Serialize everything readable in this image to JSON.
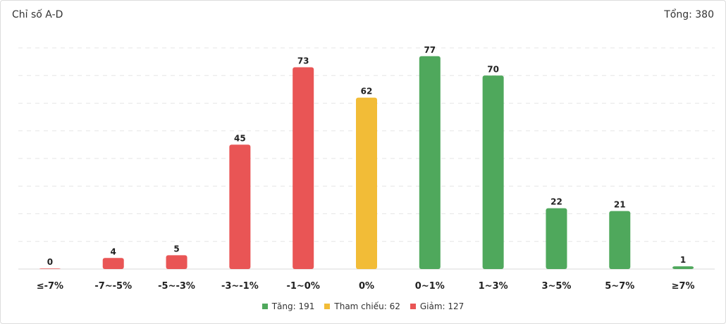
{
  "header": {
    "title": "Chỉ số A-D",
    "total": "Tổng: 380"
  },
  "colors": {
    "up": "#4fa85c",
    "ref": "#f2bc37",
    "down": "#e95555"
  },
  "legend": [
    {
      "label": "Tăng: 191",
      "color": "#4fa85c"
    },
    {
      "label": "Tham chiếu: 62",
      "color": "#f2bc37"
    },
    {
      "label": "Giảm: 127",
      "color": "#e95555"
    }
  ],
  "chart_data": {
    "type": "bar",
    "title": "Chỉ số A-D",
    "categories": [
      "≤-7%",
      "-7~-5%",
      "-5~-3%",
      "-3~-1%",
      "-1~0%",
      "0%",
      "0~1%",
      "1~3%",
      "3~5%",
      "5~7%",
      "≥7%"
    ],
    "values": [
      0,
      4,
      5,
      45,
      73,
      62,
      77,
      70,
      22,
      21,
      1
    ],
    "bar_colors": [
      "#e95555",
      "#e95555",
      "#e95555",
      "#e95555",
      "#e95555",
      "#f2bc37",
      "#4fa85c",
      "#4fa85c",
      "#4fa85c",
      "#4fa85c",
      "#4fa85c"
    ],
    "ylim": [
      0,
      80
    ],
    "grid": true,
    "legend_position": "bottom"
  }
}
